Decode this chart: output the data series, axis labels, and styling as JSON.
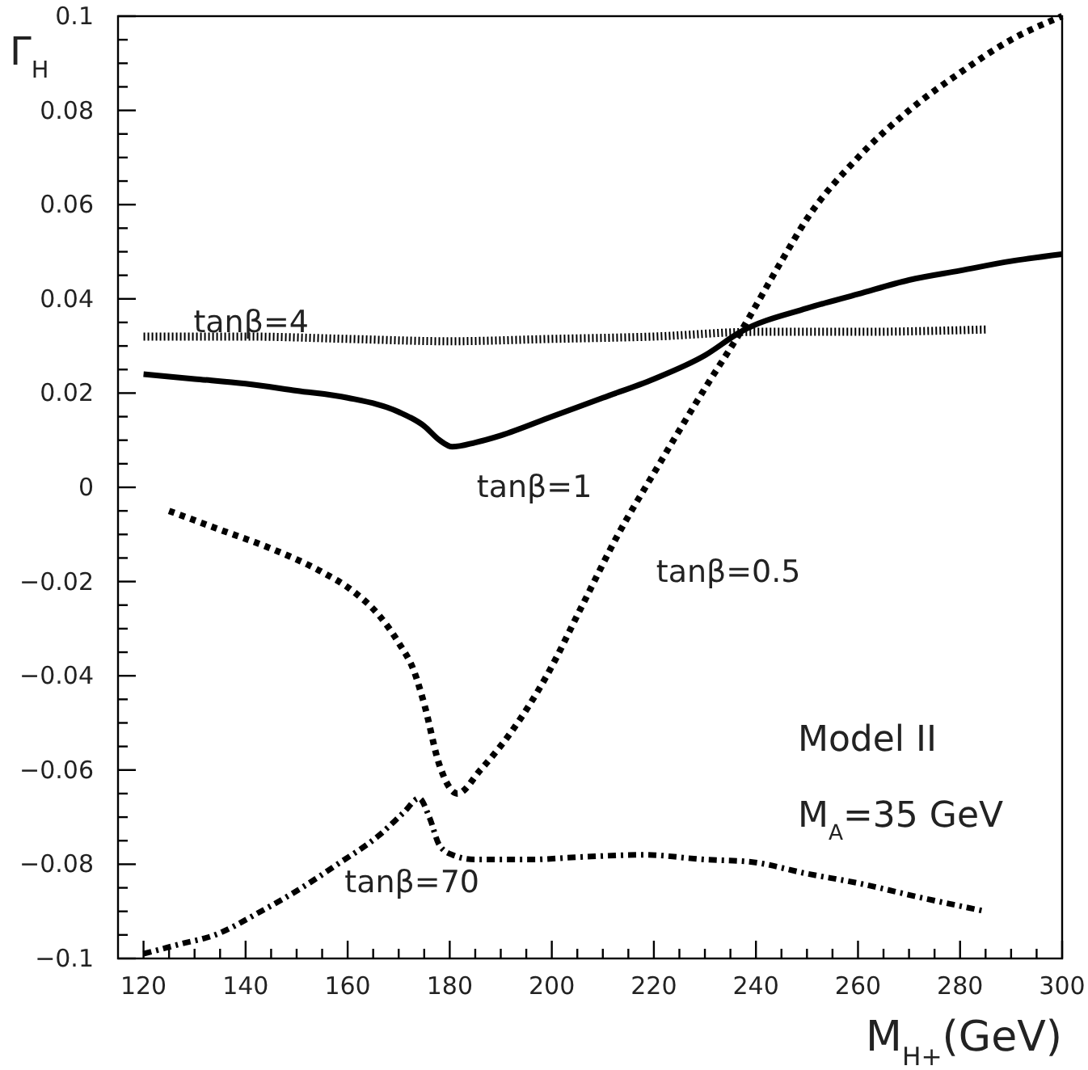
{
  "chart_data": {
    "type": "line",
    "xlabel": "M$_{H+}$(GeV)",
    "ylabel": "Γ$_{H}$",
    "xlim": [
      115,
      300
    ],
    "ylim": [
      -0.1,
      0.1
    ],
    "xticks": [
      120,
      {
        "value": 125,
        "label": null
      },
      {
        "value": 130,
        "label": null
      },
      {
        "value": 135,
        "label": null
      },
      140,
      {
        "value": 145,
        "label": null
      },
      {
        "value": 150,
        "label": null
      },
      {
        "value": 155,
        "label": null
      },
      160,
      {
        "value": 165,
        "label": null
      },
      {
        "value": 170,
        "label": null
      },
      {
        "value": 175,
        "label": null
      },
      180,
      {
        "value": 185,
        "label": null
      },
      {
        "value": 190,
        "label": null
      },
      {
        "value": 195,
        "label": null
      },
      200,
      {
        "value": 205,
        "label": null
      },
      {
        "value": 210,
        "label": null
      },
      {
        "value": 215,
        "label": null
      },
      220,
      {
        "value": 225,
        "label": null
      },
      {
        "value": 230,
        "label": null
      },
      {
        "value": 235,
        "label": null
      },
      240,
      {
        "value": 245,
        "label": null
      },
      {
        "value": 250,
        "label": null
      },
      {
        "value": 255,
        "label": null
      },
      260,
      {
        "value": 265,
        "label": null
      },
      {
        "value": 270,
        "label": null
      },
      {
        "value": 275,
        "label": null
      },
      280,
      {
        "value": 285,
        "label": null
      },
      {
        "value": 290,
        "label": null
      },
      {
        "value": 295,
        "label": null
      },
      300
    ],
    "yticks": [
      {
        "value": -0.1,
        "label": "−0.1"
      },
      {
        "value": -0.095,
        "label": null
      },
      {
        "value": -0.09,
        "label": null
      },
      {
        "value": -0.085,
        "label": null
      },
      {
        "value": -0.08,
        "label": "−0.08"
      },
      {
        "value": -0.075,
        "label": null
      },
      {
        "value": -0.07,
        "label": null
      },
      {
        "value": -0.065,
        "label": null
      },
      {
        "value": -0.06,
        "label": "−0.06"
      },
      {
        "value": -0.055,
        "label": null
      },
      {
        "value": -0.05,
        "label": null
      },
      {
        "value": -0.045,
        "label": null
      },
      {
        "value": -0.04,
        "label": "−0.04"
      },
      {
        "value": -0.035,
        "label": null
      },
      {
        "value": -0.03,
        "label": null
      },
      {
        "value": -0.025,
        "label": null
      },
      {
        "value": -0.02,
        "label": "−0.02"
      },
      {
        "value": -0.015,
        "label": null
      },
      {
        "value": -0.01,
        "label": null
      },
      {
        "value": -0.005,
        "label": null
      },
      0,
      {
        "value": 0.005,
        "label": null
      },
      {
        "value": 0.01,
        "label": null
      },
      {
        "value": 0.015,
        "label": null
      },
      0.02,
      {
        "value": 0.025,
        "label": null
      },
      {
        "value": 0.03,
        "label": null
      },
      {
        "value": 0.035,
        "label": null
      },
      0.04,
      {
        "value": 0.045,
        "label": null
      },
      {
        "value": 0.05,
        "label": null
      },
      {
        "value": 0.055,
        "label": null
      },
      0.06,
      {
        "value": 0.065,
        "label": null
      },
      {
        "value": 0.07,
        "label": null
      },
      {
        "value": 0.075,
        "label": null
      },
      0.08,
      {
        "value": 0.085,
        "label": null
      },
      {
        "value": 0.09,
        "label": null
      },
      {
        "value": 0.095,
        "label": null
      },
      0.1
    ],
    "grid": false,
    "series": [
      {
        "name": "tanβ=4",
        "color": "#000000",
        "line_style": "dotted",
        "x": [
          120,
          140,
          160,
          180,
          200,
          220,
          240,
          260,
          285
        ],
        "values": [
          0.032,
          0.032,
          0.0315,
          0.031,
          0.0315,
          0.032,
          0.033,
          0.033,
          0.0335
        ]
      },
      {
        "name": "tanβ=1",
        "color": "#000000",
        "line_style": "solid",
        "x": [
          120,
          130,
          140,
          150,
          160,
          170,
          175,
          178,
          180.5,
          185,
          190,
          200,
          210,
          220,
          230,
          237,
          250,
          260,
          270,
          280,
          290,
          300
        ],
        "values": [
          0.024,
          0.023,
          0.022,
          0.0205,
          0.019,
          0.016,
          0.013,
          0.01,
          0.0086,
          0.0095,
          0.011,
          0.015,
          0.019,
          0.023,
          0.028,
          0.033,
          0.038,
          0.041,
          0.044,
          0.046,
          0.048,
          0.0495
        ]
      },
      {
        "name": "tanβ=0.5",
        "color": "#000000",
        "line_style": "dotted",
        "x": [
          125,
          135,
          145,
          155,
          161,
          166,
          170,
          173,
          175,
          178,
          181.5,
          186,
          192,
          199,
          206,
          213,
          220,
          230,
          237,
          245,
          250,
          260,
          270,
          280,
          290,
          300
        ],
        "values": [
          -0.005,
          -0.009,
          -0.013,
          -0.018,
          -0.022,
          -0.027,
          -0.033,
          -0.039,
          -0.046,
          -0.059,
          -0.065,
          -0.06,
          -0.052,
          -0.04,
          -0.025,
          -0.01,
          0.003,
          0.021,
          0.033,
          0.048,
          0.057,
          0.07,
          0.08,
          0.088,
          0.095,
          0.1
        ]
      },
      {
        "name": "tanβ=70",
        "color": "#000000",
        "line_style": "dashdot",
        "x": [
          120,
          127,
          134,
          143,
          151,
          158,
          166,
          171,
          174,
          176,
          178,
          180.5,
          185,
          190,
          196,
          205,
          218,
          230,
          239,
          250,
          260,
          272,
          285
        ],
        "values": [
          -0.099,
          -0.097,
          -0.095,
          -0.09,
          -0.085,
          -0.08,
          -0.074,
          -0.069,
          -0.066,
          -0.07,
          -0.076,
          -0.078,
          -0.079,
          -0.079,
          -0.079,
          -0.0785,
          -0.078,
          -0.079,
          -0.0795,
          -0.082,
          -0.084,
          -0.087,
          -0.09
        ]
      }
    ],
    "annotations": [
      "Model II",
      "M$_{A}$=35 GeV"
    ]
  }
}
